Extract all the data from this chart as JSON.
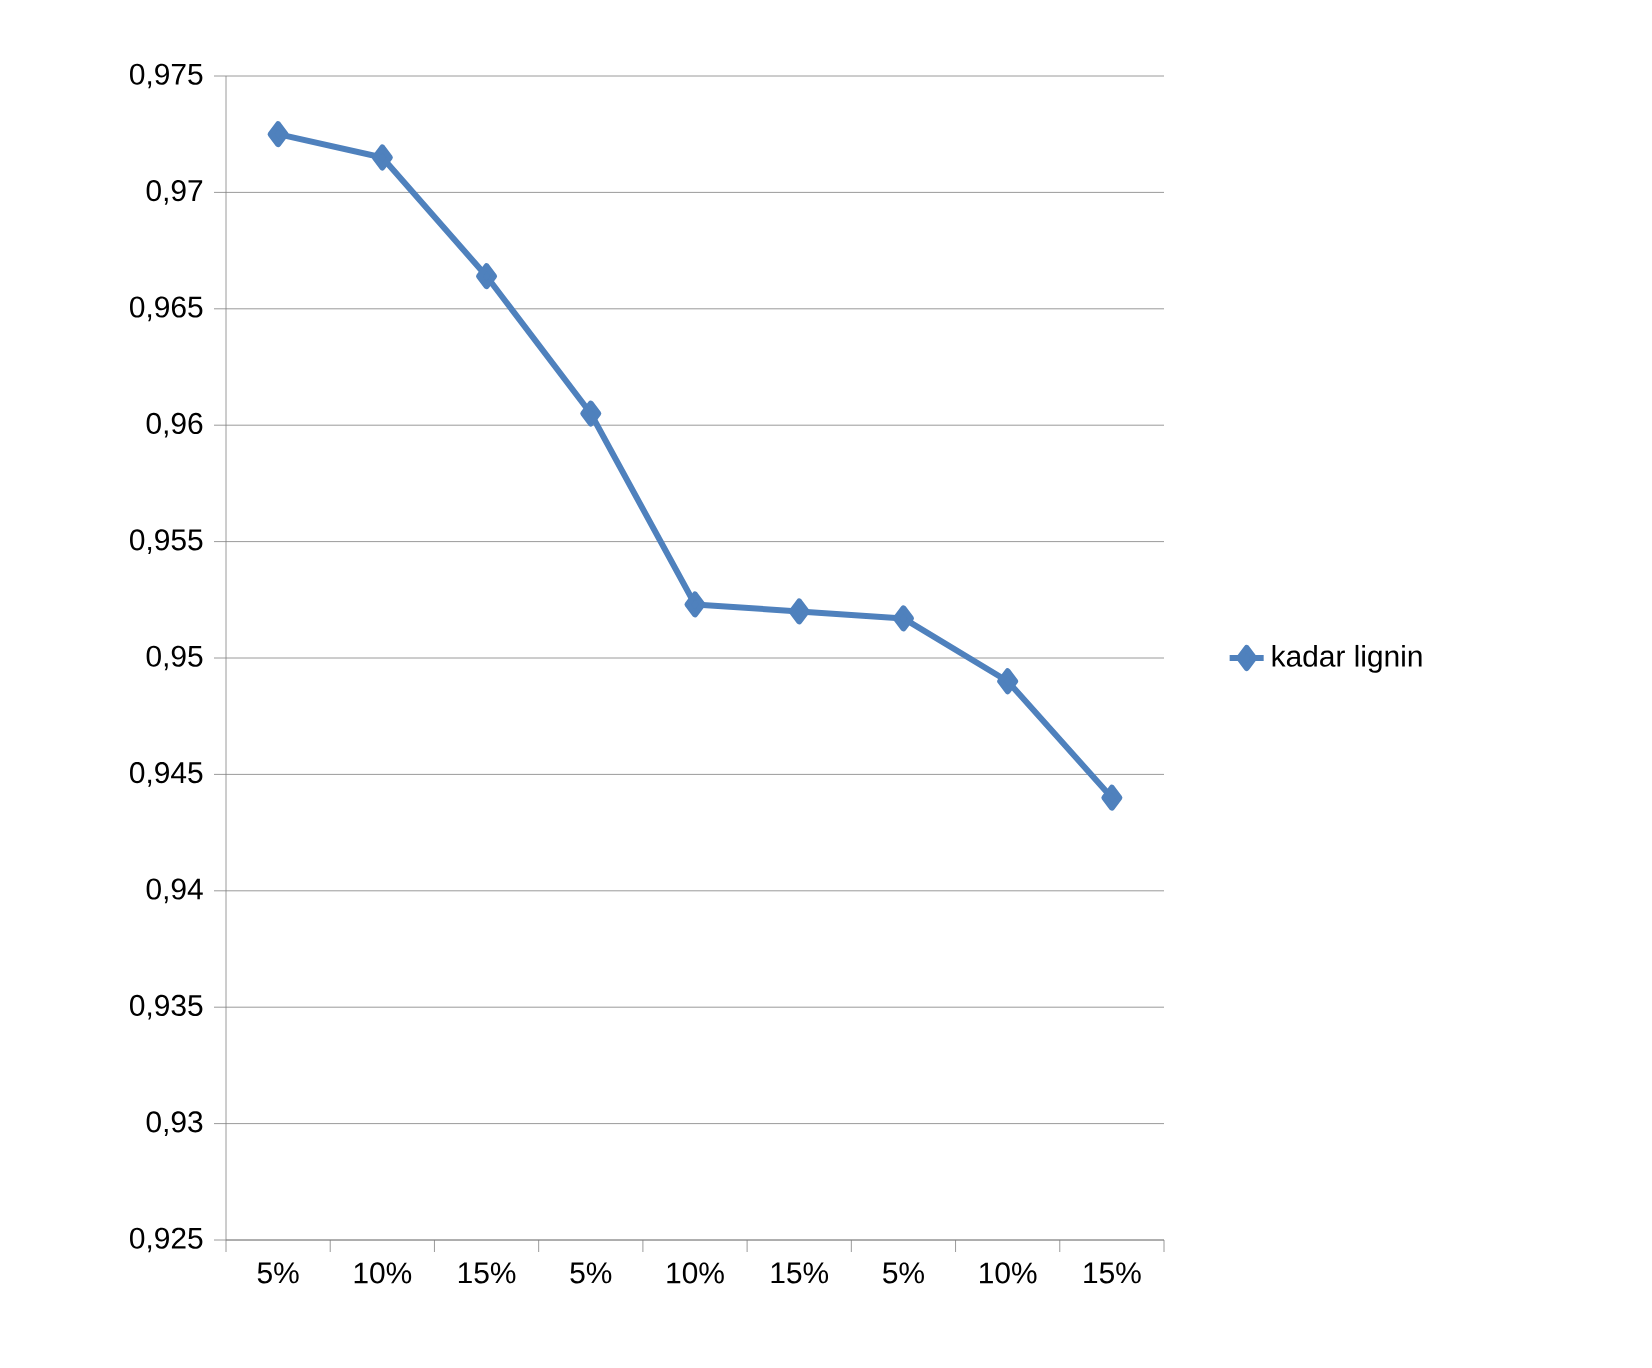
{
  "chart_data": {
    "type": "line",
    "categories": [
      "5%",
      "10%",
      "15%",
      "5%",
      "10%",
      "15%",
      "5%",
      "10%",
      "15%"
    ],
    "series": [
      {
        "name": "kadar lignin",
        "color": "#4f81bd",
        "values": [
          0.9725,
          0.9715,
          0.9664,
          0.9605,
          0.9523,
          0.952,
          0.9517,
          0.949,
          0.944
        ]
      }
    ],
    "ylim": [
      0.925,
      0.975
    ],
    "yticks": [
      {
        "value": 0.925,
        "label": "0,925"
      },
      {
        "value": 0.93,
        "label": "0,93"
      },
      {
        "value": 0.935,
        "label": "0,935"
      },
      {
        "value": 0.94,
        "label": "0,94"
      },
      {
        "value": 0.945,
        "label": "0,945"
      },
      {
        "value": 0.95,
        "label": "0,95"
      },
      {
        "value": 0.955,
        "label": "0,955"
      },
      {
        "value": 0.96,
        "label": "0,96"
      },
      {
        "value": 0.965,
        "label": "0,965"
      },
      {
        "value": 0.97,
        "label": "0,97"
      },
      {
        "value": 0.975,
        "label": "0,975"
      }
    ],
    "grid": "y",
    "legend": "right",
    "marker": "diamond",
    "line_style": "solid"
  }
}
